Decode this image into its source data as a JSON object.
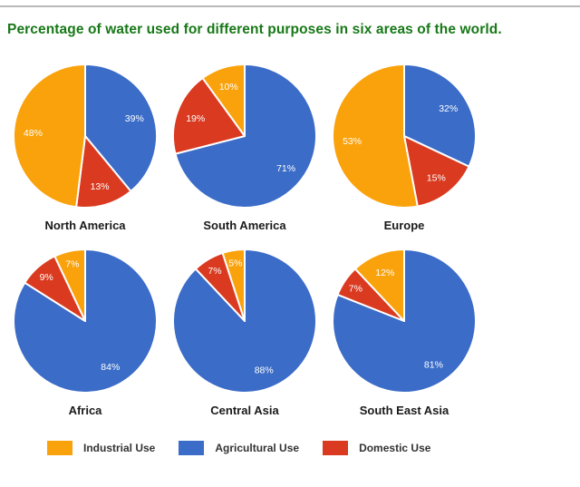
{
  "page": {
    "title": "Percentage of water used for different purposes in six areas of the world."
  },
  "colors": {
    "Industrial Use": "#FAA20B",
    "Agricultural Use": "#3B6CC7",
    "Domestic Use": "#D93A20"
  },
  "chart_data": {
    "type": "pie",
    "title": "Percentage of water used for different purposes in six areas of the world.",
    "label_format": "{value}%",
    "legend_position": "bottom",
    "legend": [
      {
        "label": "Industrial Use",
        "color": "#FAA20B"
      },
      {
        "label": "Agricultural Use",
        "color": "#3B6CC7"
      },
      {
        "label": "Domestic Use",
        "color": "#D93A20"
      }
    ],
    "slice_draw_order": "clockwise from 12 o'clock: Agricultural, Domestic, Industrial",
    "pies": [
      {
        "region": "North America",
        "slices": [
          {
            "name": "Agricultural Use",
            "value": 39
          },
          {
            "name": "Domestic Use",
            "value": 13
          },
          {
            "name": "Industrial Use",
            "value": 48
          }
        ]
      },
      {
        "region": "South America",
        "slices": [
          {
            "name": "Agricultural Use",
            "value": 71
          },
          {
            "name": "Domestic Use",
            "value": 19
          },
          {
            "name": "Industrial Use",
            "value": 10
          }
        ]
      },
      {
        "region": "Europe",
        "slices": [
          {
            "name": "Agricultural Use",
            "value": 32
          },
          {
            "name": "Domestic Use",
            "value": 15
          },
          {
            "name": "Industrial Use",
            "value": 53
          }
        ]
      },
      {
        "region": "Africa",
        "slices": [
          {
            "name": "Agricultural Use",
            "value": 84
          },
          {
            "name": "Domestic Use",
            "value": 9
          },
          {
            "name": "Industrial Use",
            "value": 7
          }
        ]
      },
      {
        "region": "Central Asia",
        "slices": [
          {
            "name": "Agricultural Use",
            "value": 88
          },
          {
            "name": "Domestic Use",
            "value": 7
          },
          {
            "name": "Industrial Use",
            "value": 5
          }
        ]
      },
      {
        "region": "South East Asia",
        "slices": [
          {
            "name": "Agricultural Use",
            "value": 81
          },
          {
            "name": "Domestic Use",
            "value": 7
          },
          {
            "name": "Industrial Use",
            "value": 12
          }
        ]
      }
    ]
  }
}
